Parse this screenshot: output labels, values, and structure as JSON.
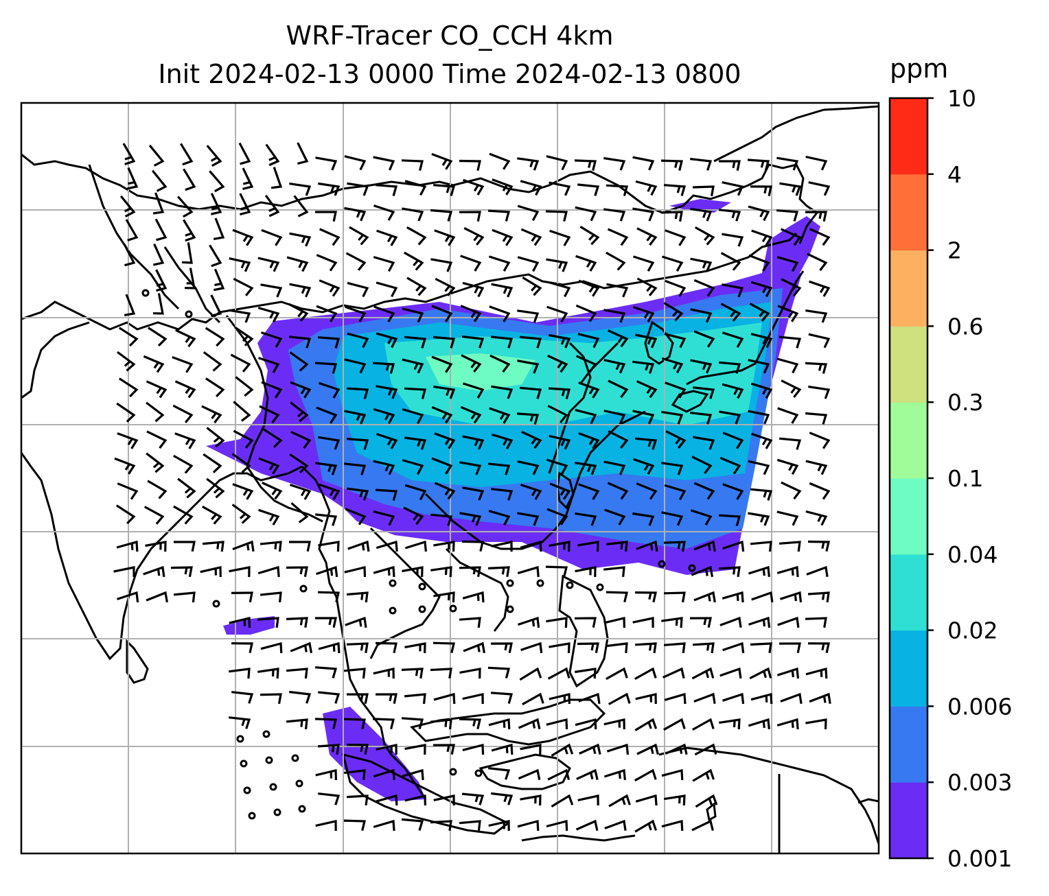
{
  "title": {
    "line1": "WRF-Tracer CO_CCH 4km",
    "line2": "Init 2024-02-13 0000 Time 2024-02-13 0800"
  },
  "colorbar": {
    "unit": "ppm",
    "levels": [
      "0.001",
      "0.003",
      "0.006",
      "0.02",
      "0.04",
      "0.1",
      "0.3",
      "0.6",
      "2",
      "4",
      "10"
    ],
    "colors": [
      "#6b2df5",
      "#3779f0",
      "#08b2e3",
      "#2fdfd4",
      "#6ffcc2",
      "#9ffc98",
      "#cfe07e",
      "#fdb060",
      "#ff7038",
      "#ff2b16"
    ]
  },
  "map": {
    "grid": true,
    "wind_barbs": true,
    "coastlines": true
  }
}
